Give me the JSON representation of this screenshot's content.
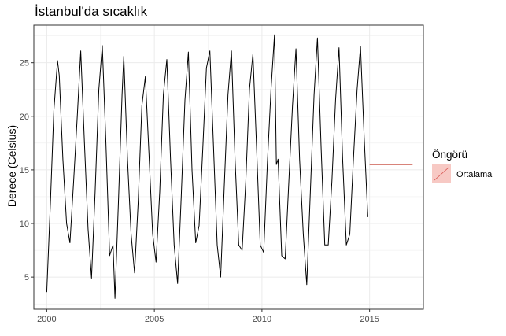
{
  "chart_data": {
    "type": "line",
    "title": "İstanbul'da sıcaklık",
    "xlabel": "",
    "ylabel": "Derece (Celsius)",
    "xlim": [
      1999.4,
      2017.5
    ],
    "ylim": [
      2.0,
      28.5
    ],
    "x_ticks": [
      2000,
      2005,
      2010,
      2015
    ],
    "x_tick_labels": [
      "2000",
      "2005",
      "2010",
      "2015"
    ],
    "y_ticks": [
      5,
      10,
      15,
      20,
      25
    ],
    "y_tick_labels": [
      "5",
      "10",
      "15",
      "20",
      "25"
    ],
    "grid": true,
    "legend_position": "right",
    "series": [
      {
        "color": "#000000",
        "x": [
          2000.0,
          2000.17,
          2000.33,
          2000.5,
          2000.58,
          2000.75,
          2000.92,
          2001.08,
          2001.25,
          2001.42,
          2001.58,
          2001.75,
          2001.92,
          2002.08,
          2002.25,
          2002.42,
          2002.58,
          2002.75,
          2002.92,
          2003.08,
          2003.17,
          2003.33,
          2003.5,
          2003.58,
          2003.75,
          2003.92,
          2004.08,
          2004.25,
          2004.42,
          2004.58,
          2004.75,
          2004.92,
          2005.08,
          2005.25,
          2005.42,
          2005.58,
          2005.75,
          2005.92,
          2006.08,
          2006.25,
          2006.42,
          2006.58,
          2006.75,
          2006.92,
          2007.08,
          2007.25,
          2007.42,
          2007.58,
          2007.75,
          2007.92,
          2008.08,
          2008.25,
          2008.42,
          2008.58,
          2008.75,
          2008.92,
          2009.08,
          2009.25,
          2009.42,
          2009.58,
          2009.75,
          2009.92,
          2010.08,
          2010.25,
          2010.42,
          2010.58,
          2010.67,
          2010.75,
          2010.92,
          2011.08,
          2011.25,
          2011.42,
          2011.58,
          2011.75,
          2011.92,
          2012.08,
          2012.25,
          2012.42,
          2012.58,
          2012.75,
          2012.92,
          2013.08,
          2013.25,
          2013.42,
          2013.58,
          2013.75,
          2013.92,
          2014.08,
          2014.25,
          2014.42,
          2014.58,
          2014.75,
          2014.92
        ],
        "y": [
          3.6,
          12.0,
          20.5,
          25.2,
          23.8,
          16.0,
          10.0,
          8.2,
          14.0,
          20.0,
          26.1,
          17.5,
          9.5,
          4.9,
          13.0,
          22.5,
          26.6,
          17.5,
          7.0,
          8.0,
          3.0,
          12.0,
          22.0,
          25.6,
          16.0,
          9.0,
          5.4,
          12.0,
          21.0,
          23.7,
          16.5,
          9.0,
          6.4,
          13.0,
          22.0,
          25.3,
          16.0,
          8.0,
          4.4,
          12.5,
          21.5,
          26.0,
          15.0,
          8.2,
          9.8,
          17.0,
          24.5,
          26.1,
          17.0,
          8.0,
          5.0,
          13.5,
          22.0,
          26.1,
          16.0,
          8.0,
          7.5,
          14.0,
          22.5,
          25.8,
          17.0,
          8.0,
          7.3,
          15.5,
          22.5,
          27.6,
          15.5,
          16.0,
          7.0,
          6.7,
          14.0,
          21.0,
          26.3,
          16.0,
          9.0,
          4.3,
          13.0,
          22.0,
          27.3,
          17.0,
          8.0,
          8.0,
          14.0,
          21.5,
          26.4,
          16.0,
          8.0,
          9.0,
          16.0,
          22.5,
          26.5,
          18.0,
          10.6
        ]
      }
    ],
    "forecast": {
      "color": "#c0392b",
      "x": [
        2015.0,
        2017.0
      ],
      "y": [
        15.5,
        15.5
      ]
    },
    "legend": {
      "title": "Öngörü",
      "entries": [
        {
          "label": "Ortalama",
          "swatch_fill": "#f7c9c4",
          "line_color": "#d9534f"
        }
      ]
    }
  }
}
